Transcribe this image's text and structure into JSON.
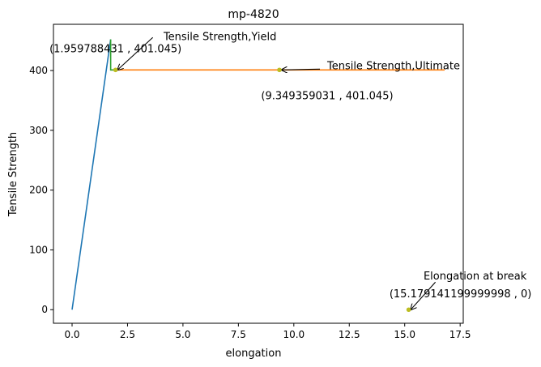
{
  "chart_data": {
    "type": "line",
    "title": "mp-4820",
    "xlabel": "elongation",
    "ylabel": "Tensile Strength",
    "xlim": [
      -0.84,
      17.64
    ],
    "ylim": [
      -22.7,
      477.3
    ],
    "xticks": [
      0.0,
      2.5,
      5.0,
      7.5,
      10.0,
      12.5,
      15.0,
      17.5
    ],
    "xtick_labels": [
      "0.0",
      "2.5",
      "5.0",
      "7.5",
      "10.0",
      "12.5",
      "15.0",
      "17.5"
    ],
    "yticks": [
      0,
      100,
      200,
      300,
      400
    ],
    "ytick_labels": [
      "0",
      "100",
      "200",
      "300",
      "400"
    ],
    "grid": false,
    "series": [
      {
        "color": "#1f77b4",
        "x": [
          0.0,
          1.74
        ],
        "y": [
          0,
          452
        ]
      },
      {
        "color": "#ff7f0e",
        "x": [
          1.74,
          1.96,
          9.35,
          16.8
        ],
        "y": [
          401.045,
          401.045,
          401.045,
          401.045
        ]
      },
      {
        "color": "#2ca02c",
        "x": [
          1.74,
          1.74,
          1.96
        ],
        "y": [
          452,
          401.045,
          401.045
        ]
      }
    ],
    "points": [
      {
        "x": 1.959788431,
        "y": 401.045,
        "color": "#bcbd22"
      },
      {
        "x": 9.349359031,
        "y": 401.045,
        "color": "#bcbd22"
      },
      {
        "x": 15.179141199999998,
        "y": 0,
        "color": "#bcbd22"
      }
    ],
    "annotations": [
      {
        "label": "Tensile Strength,Yield",
        "coord": "(1.959788431 , 401.045)",
        "x": 1.959788431,
        "y": 401.045
      },
      {
        "label": "Tensile Strength,Ultimate",
        "coord": "(9.349359031 , 401.045)",
        "x": 9.349359031,
        "y": 401.045
      },
      {
        "label": "Elongation at break",
        "coord": "(15.179141199999998 , 0)",
        "x": 15.179141199999998,
        "y": 0
      }
    ]
  }
}
